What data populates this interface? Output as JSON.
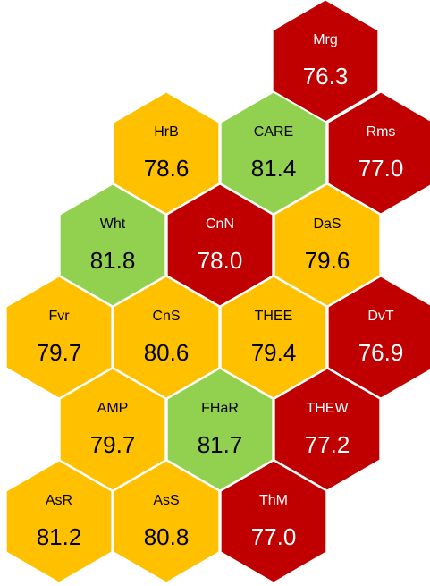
{
  "chart_data": {
    "type": "hexmap",
    "categories": [
      "Mrg",
      "HrB",
      "CARE",
      "Rms",
      "Wht",
      "CnN",
      "DaS",
      "Fvr",
      "CnS",
      "THEE",
      "DvT",
      "AMP",
      "FHaR",
      "THEW",
      "AsR",
      "AsS",
      "ThM"
    ],
    "values": [
      76.3,
      78.6,
      81.4,
      77,
      81.8,
      78,
      79.6,
      79.7,
      80.6,
      79.4,
      76.9,
      79.7,
      81.7,
      77.2,
      81.2,
      80.8,
      77
    ],
    "value_labels": [
      "76.3",
      "78.6",
      "81.4",
      "77.0",
      "81.8",
      "78.0",
      "79.6",
      "79.7",
      "80.6",
      "79.4",
      "76.9",
      "79.7",
      "81.7",
      "77.2",
      "81.2",
      "80.8",
      "77.0"
    ],
    "colors": [
      "#c00000",
      "#ffc000",
      "#92d050",
      "#c00000",
      "#92d050",
      "#c00000",
      "#ffc000",
      "#ffc000",
      "#ffc000",
      "#ffc000",
      "#c00000",
      "#ffc000",
      "#92d050",
      "#c00000",
      "#ffc000",
      "#ffc000",
      "#c00000"
    ]
  }
}
